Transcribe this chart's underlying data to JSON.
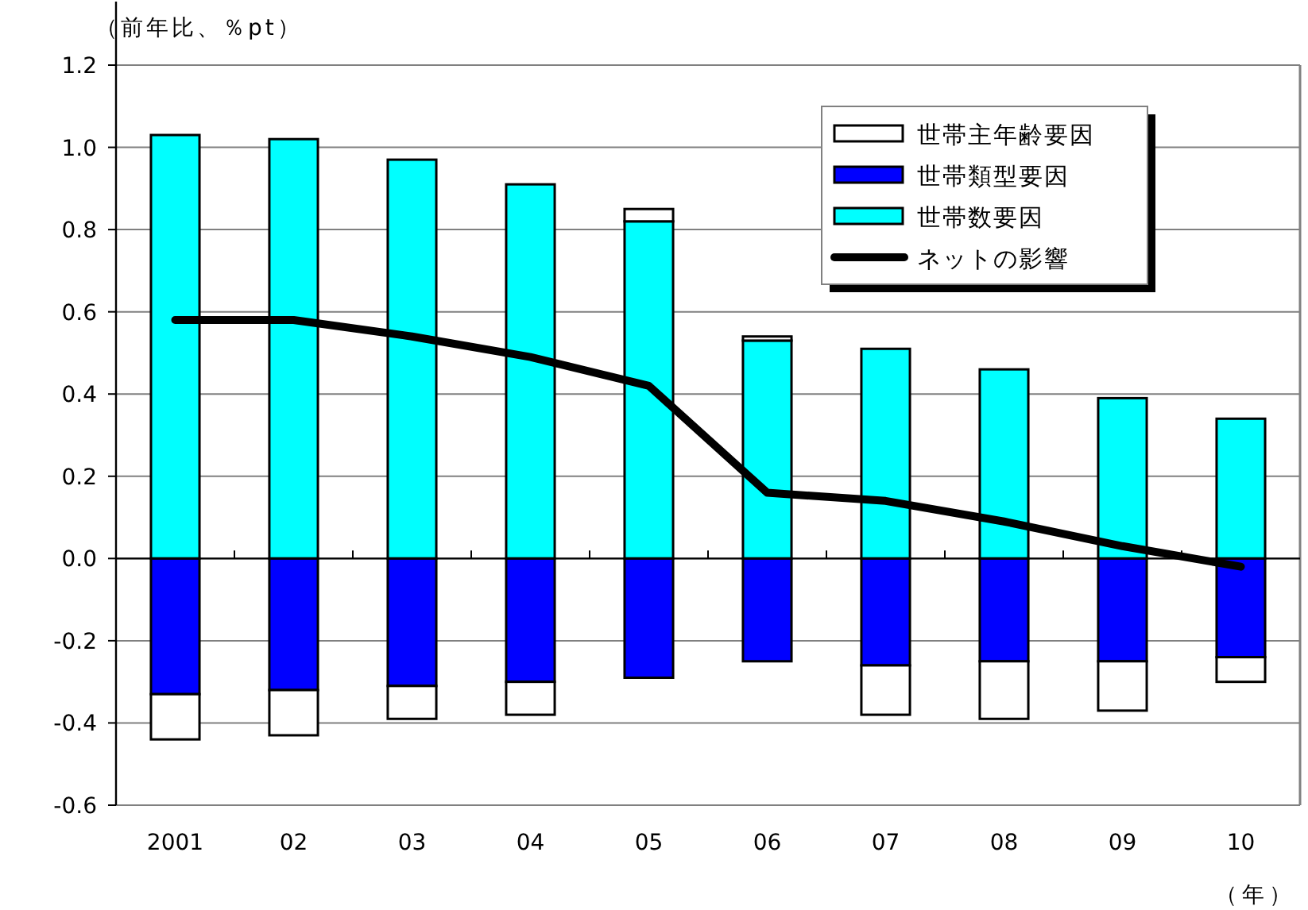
{
  "chart_data": {
    "type": "bar",
    "stacked": true,
    "ylabel": "（前年比、％pt）",
    "xlabel": "（年）",
    "categories": [
      "2001",
      "02",
      "03",
      "04",
      "05",
      "06",
      "07",
      "08",
      "09",
      "10"
    ],
    "series": [
      {
        "name": "世帯数要因",
        "color": "#00ffff",
        "values": [
          1.03,
          1.02,
          0.97,
          0.91,
          0.82,
          0.53,
          0.51,
          0.46,
          0.39,
          0.34
        ]
      },
      {
        "name": "世帯類型要因",
        "color": "#0000ff",
        "values": [
          -0.33,
          -0.32,
          -0.31,
          -0.3,
          -0.29,
          -0.25,
          -0.26,
          -0.25,
          -0.25,
          -0.24
        ]
      },
      {
        "name": "世帯主年齢要因",
        "color": "#ffffff",
        "values": [
          -0.11,
          -0.11,
          -0.08,
          -0.08,
          0.03,
          0.01,
          -0.12,
          -0.14,
          -0.12,
          -0.06
        ]
      },
      {
        "name": "ネットの影響",
        "type": "line",
        "color": "#000000",
        "values": [
          0.58,
          0.58,
          0.54,
          0.49,
          0.42,
          0.16,
          0.14,
          0.09,
          0.03,
          -0.02
        ]
      }
    ],
    "ylim": [
      -0.6,
      1.2
    ],
    "yticks": [
      {
        "value": -0.6,
        "label": "-0.6"
      },
      {
        "value": -0.4,
        "label": "-0.4"
      },
      {
        "value": -0.2,
        "label": "-0.2"
      },
      {
        "value": 0,
        "label": "0.0"
      },
      {
        "value": 0.2,
        "label": "0.2"
      },
      {
        "value": 0.4,
        "label": "0.4"
      },
      {
        "value": 0.6,
        "label": "0.6"
      },
      {
        "value": 0.8,
        "label": "0.8"
      },
      {
        "value": 1.0,
        "label": "1.0"
      },
      {
        "value": 1.2,
        "label": "1.2"
      }
    ],
    "grid": "y",
    "legend": "top right"
  }
}
